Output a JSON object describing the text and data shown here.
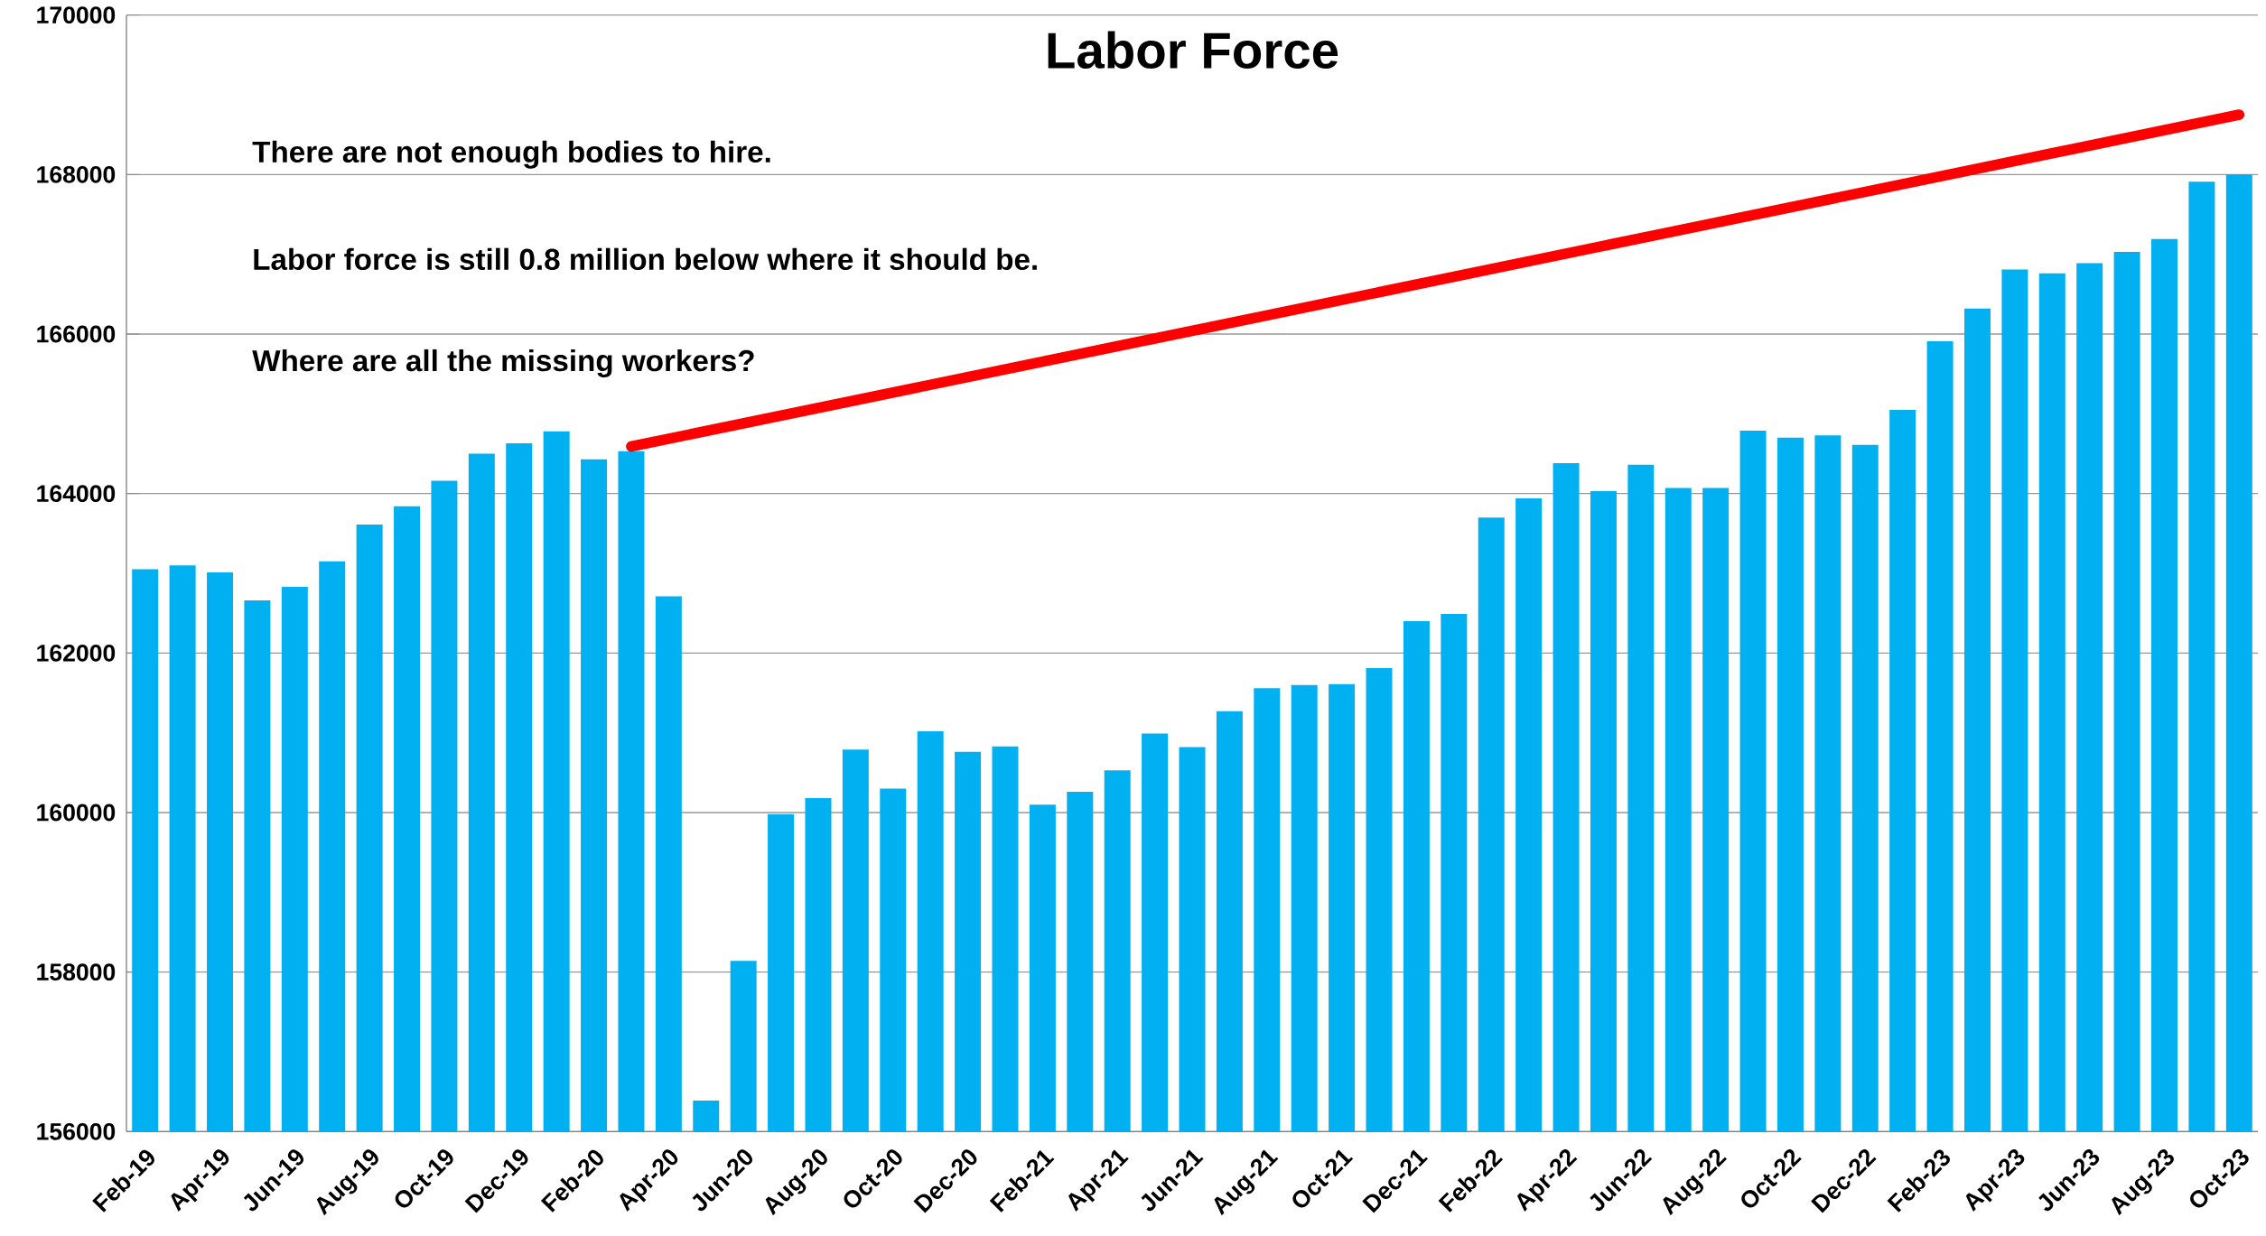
{
  "chart_data": {
    "type": "bar",
    "title": "Labor Force",
    "categories": [
      "Feb-19",
      null,
      "Apr-19",
      null,
      "Jun-19",
      null,
      "Aug-19",
      null,
      "Oct-19",
      null,
      "Dec-19",
      null,
      "Feb-20",
      null,
      "Apr-20",
      null,
      "Jun-20",
      null,
      "Aug-20",
      null,
      "Oct-20",
      null,
      "Dec-20",
      null,
      "Feb-21",
      null,
      "Apr-21",
      null,
      "Jun-21",
      null,
      "Aug-21",
      null,
      "Oct-21",
      null,
      "Dec-21",
      null,
      "Feb-22",
      null,
      "Apr-22",
      null,
      "Jun-22",
      null,
      "Aug-22",
      null,
      "Oct-22",
      null,
      "Dec-22",
      null,
      "Feb-23",
      null,
      "Apr-23",
      null,
      "Jun-23",
      null,
      "Aug-23",
      null,
      "Oct-23"
    ],
    "series": [
      {
        "color": "#00b0f0",
        "values": [
          163050,
          163100,
          163010,
          162660,
          162830,
          163150,
          163610,
          163840,
          164160,
          164500,
          164630,
          164780,
          164430,
          164530,
          162710,
          156390,
          158140,
          159980,
          160180,
          160790,
          160300,
          161020,
          160760,
          160830,
          160100,
          160260,
          160530,
          160990,
          160820,
          161270,
          161560,
          161600,
          161610,
          161810,
          162400,
          162490,
          163700,
          163940,
          164380,
          164030,
          164360,
          164070,
          164070,
          164790,
          164700,
          164730,
          164610,
          165050,
          165910,
          166320,
          166810,
          166760,
          166890,
          167030,
          167190,
          167910,
          168000
        ]
      },
      {
        "type": "line",
        "color": "#ff0000",
        "values": [
          null,
          null,
          null,
          null,
          null,
          null,
          null,
          null,
          null,
          null,
          null,
          null,
          null,
          164590,
          null,
          null,
          null,
          null,
          null,
          null,
          null,
          null,
          null,
          null,
          null,
          null,
          null,
          null,
          null,
          null,
          null,
          null,
          null,
          null,
          null,
          null,
          null,
          null,
          null,
          null,
          null,
          null,
          null,
          null,
          null,
          null,
          null,
          null,
          null,
          null,
          null,
          null,
          null,
          null,
          null,
          null,
          168750
        ]
      }
    ],
    "ylim": [
      156000,
      170000
    ],
    "yticks": [
      156000,
      158000,
      160000,
      162000,
      164000,
      166000,
      168000,
      170000
    ],
    "grid": "y",
    "annotations": [
      "There are not enough bodies to hire.",
      "Labor force is still 0.8 million below where it should be.",
      "Where are all the missing workers?"
    ]
  }
}
